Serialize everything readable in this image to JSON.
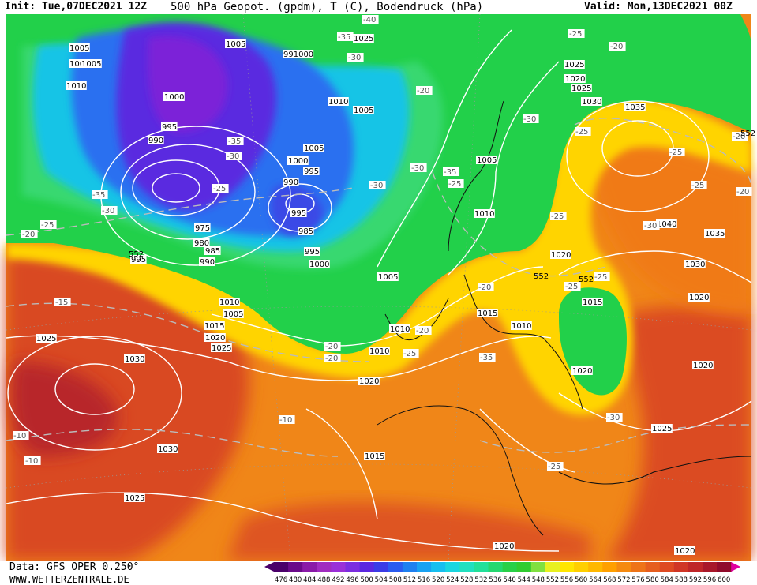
{
  "header": {
    "init": "Init: Tue,07DEC2021 12Z",
    "title": "500 hPa Geopot. (gpdm), T (C), Bodendruck (hPa)",
    "valid": "Valid: Mon,13DEC2021 00Z"
  },
  "footer": {
    "source": "Data: GFS OPER 0.250°",
    "site": "WWW.WETTERZENTRALE.DE"
  },
  "legend": {
    "values": [
      "476",
      "480",
      "484",
      "488",
      "492",
      "496",
      "500",
      "504",
      "508",
      "512",
      "516",
      "520",
      "524",
      "528",
      "532",
      "536",
      "540",
      "544",
      "548",
      "552",
      "556",
      "560",
      "564",
      "568",
      "572",
      "576",
      "580",
      "584",
      "588",
      "592",
      "596",
      "600"
    ],
    "colors": [
      "#4a006a",
      "#6a0a8a",
      "#8a1aa8",
      "#a02cc0",
      "#9a30d8",
      "#7b2ee0",
      "#5a28e0",
      "#3a3ce6",
      "#2a5cf0",
      "#1e80f0",
      "#18a2f2",
      "#16bff0",
      "#1ad6e0",
      "#20e0c0",
      "#22e09a",
      "#24d870",
      "#28d048",
      "#30cc30",
      "#80e040",
      "#e8f020",
      "#ffe600",
      "#ffcf00",
      "#ffb800",
      "#ffa000",
      "#f58a10",
      "#ee7418",
      "#e65e1e",
      "#de4a22",
      "#d03626",
      "#bf2628",
      "#a8182a",
      "#900c2c"
    ]
  },
  "map_colors": {
    "ocean_red": "#d84a22",
    "orange": "#ef8416",
    "yellow": "#ffd800",
    "green": "#22d24a",
    "cyan": "#18c8e8",
    "blue": "#2a6cf0",
    "purple": "#6a2ae0"
  },
  "pressure_labels": [
    "1005",
    "1005",
    "1000",
    "1005",
    "1010",
    "1000",
    "995",
    "990",
    "991000",
    "1005",
    "1010",
    "1005",
    "1000",
    "995",
    "990",
    "985",
    "980",
    "975",
    "995",
    "995",
    "990",
    "985",
    "995",
    "1000",
    "1005",
    "1010",
    "1005",
    "1010",
    "1015",
    "1020",
    "1025",
    "1025",
    "1030",
    "1030",
    "1025",
    "1020",
    "1015",
    "1010",
    "1005",
    "1010",
    "1015",
    "1020",
    "1025",
    "1020",
    "1025",
    "1030",
    "1035",
    "1040",
    "1035",
    "1030",
    "1020",
    "1025",
    "1020",
    "1020",
    "1025",
    "1020",
    "1010",
    "1015",
    "1020"
  ],
  "temperature_labels": [
    "-40",
    "-35",
    "-30",
    "-35",
    "-30",
    "-25",
    "-30",
    "-35",
    "-30",
    "-35",
    "-30",
    "-25",
    "-20",
    "-15",
    "-10",
    "-10",
    "-10",
    "-20",
    "-25",
    "-20",
    "-20",
    "-20",
    "-25",
    "-25",
    "-30",
    "-25",
    "-20",
    "-25",
    "-30",
    "-25",
    "-20",
    "-25",
    "-30",
    "-25",
    "-20",
    "-35",
    "-25",
    "-25",
    "-20"
  ],
  "geopotential_labels": [
    "552",
    "552",
    "552",
    "552"
  ]
}
